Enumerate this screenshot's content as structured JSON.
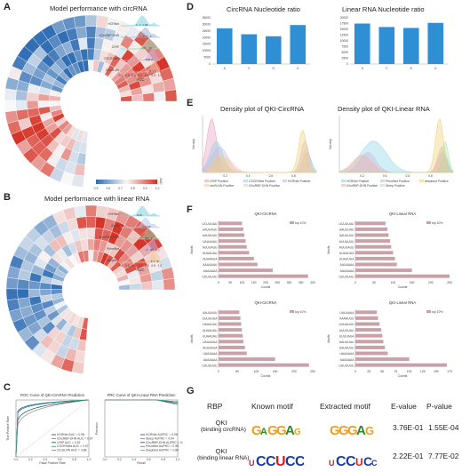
{
  "panels": {
    "A": {
      "label": "A",
      "title": "Model performance with circRNA",
      "models": [
        "HCRNet",
        "iCircRBP-DHN",
        "CRIP",
        "CSCRSites",
        "CircSLNN"
      ],
      "xlabel": "AUC",
      "xticks": [
        "0.4",
        "0.5",
        "0.6",
        "0.7",
        "0.8",
        "0.9",
        "1.0"
      ]
    },
    "B": {
      "label": "B",
      "title": "Model performance with linear RNA",
      "models": [
        "HCRNet",
        "iDeep",
        "iCircRBP-DHN",
        "PrismNet",
        "deepbind"
      ],
      "xlabel": "AUC",
      "xticks": [
        "0.4",
        "0.5",
        "0.6",
        "0.7",
        "0.8",
        "0.9",
        "1.0"
      ],
      "colorbar": {
        "label": "AUC",
        "ticks": [
          "0.5",
          "0.6",
          "0.7",
          "0.8",
          "0.9",
          "1.0"
        ]
      }
    },
    "C": {
      "label": "C",
      "roc_title": "ROC Curve of QKI-CircRNA Prediction",
      "roc_xlabel": "False Positive Rate",
      "roc_ylabel": "True Positive Rate",
      "roc_legend": [
        "HCRNet AUC = 0.98",
        "iCircRBP-DHN AUC = 0.97",
        "CRIP AUC = 0.92",
        "CSCRSites AUC = 0.97",
        "CircSLNN AUC = 0.88"
      ],
      "prc_title": "PRC Curve of QKI-Linear RNA Prediction",
      "prc_xlabel": "Recall",
      "prc_ylabel": "Precision",
      "prc_legend": [
        "HCRNet AUPRC = 0.96",
        "iDeep AUPRC = 0.94",
        "iCircRBP-DHN AUPRC = 0.92",
        "PrismNet AUPRC = 0.95",
        "deepbind AUPRC = 0.89"
      ]
    },
    "D": {
      "label": "D",
      "circ_title": "CircRNA Nucleotide ratio",
      "lin_title": "Linear RNA Nucleotide ratio"
    },
    "E": {
      "label": "E",
      "circ_title": "Density plot of QKI-CircRNA",
      "lin_title": "Density plot of QKI-Linear RNA",
      "ylabel": "Density",
      "circ_legend": [
        "CRIP Positive",
        "CSCRSites Positive",
        "HCRNet Positive",
        "circSLNN Positive",
        "iCircRBP-DHN Positive"
      ],
      "lin_legend": [
        "HCRNet Positive",
        "PrismNet Positive",
        "deepbind Positive",
        "iCircRBP-DHN Positive",
        "iDeep Positive"
      ]
    },
    "F": {
      "label": "F",
      "titles": [
        "QKI-CircRNA",
        "QKI-Linear RNA",
        "QKI-CircRNA",
        "QKI-Linear RNA"
      ],
      "legend": "top 10%",
      "xlabel": "Counts",
      "ylabel": "Motifs"
    },
    "G": {
      "label": "G",
      "headers": {
        "rbp": "RBP",
        "known": "Known motif",
        "extracted": "Extracted motif",
        "evalue": "E-value",
        "pvalue": "P-value"
      },
      "rows": [
        {
          "rbp": "QKI",
          "rbp_sub": "(binding circRNA)",
          "evalue": "3.76E-01",
          "pvalue": "1.55E-04"
        },
        {
          "rbp": "QKI",
          "rbp_sub": "(binding linear RNA)",
          "evalue": "2.22E-01",
          "pvalue": "7.77E-02"
        }
      ]
    }
  },
  "chart_data": [
    {
      "type": "bar",
      "title": "CircRNA Nucleotide ratio",
      "categories": [
        "A",
        "C",
        "G",
        "U"
      ],
      "values": [
        27000,
        22500,
        21000,
        29500
      ],
      "ylim": [
        0,
        35000
      ],
      "yticks": [
        "0",
        "5000",
        "10000",
        "15000",
        "20000",
        "25000",
        "30000",
        "35000"
      ],
      "color": "#2e8fd4"
    },
    {
      "type": "bar",
      "title": "Linear RNA Nucleotide ratio",
      "categories": [
        "A",
        "C",
        "G",
        "U"
      ],
      "values": [
        17500,
        16000,
        15600,
        17800
      ],
      "ylim": [
        0,
        20000
      ],
      "yticks": [
        "0",
        "2500",
        "5000",
        "7500",
        "10000",
        "12500",
        "15000",
        "17500",
        "20000"
      ],
      "color": "#2e8fd4"
    },
    {
      "type": "bar",
      "title": "QKI-CircRNA",
      "orientation": "horizontal",
      "series_name": "top 10%",
      "categories": [
        "UCUUUAU",
        "UAUUAUU",
        "UAUAUUU",
        "UAUAAAU",
        "AUUUAUU",
        "AUAAUAU",
        "AUAAAUA",
        "AAUAAAU",
        "AAAAAAA",
        "UUUUUUU"
      ],
      "values": [
        100,
        105,
        110,
        115,
        120,
        130,
        150,
        165,
        230,
        380
      ],
      "xlim": [
        0,
        400
      ],
      "xticks": [
        "0",
        "50",
        "100",
        "150",
        "200",
        "250",
        "300",
        "350",
        "400"
      ],
      "color": "#c9a1a8"
    },
    {
      "type": "bar",
      "title": "QKI-Linear RNA",
      "orientation": "horizontal",
      "series_name": "top 10%",
      "categories": [
        "UCUUUAU",
        "UAUUUAU",
        "UAUAUUU",
        "AUUAUUU",
        "AUUUAUU",
        "AUAUUUA",
        "UUAUUUA",
        "AAUAAAA",
        "AAAAAAA",
        "UUUUUUU"
      ],
      "values": [
        80,
        85,
        88,
        92,
        95,
        100,
        105,
        110,
        150,
        250
      ],
      "xlim": [
        0,
        250
      ],
      "xticks": [
        "0",
        "50",
        "100",
        "150",
        "200",
        "250"
      ],
      "color": "#c9a1a8"
    },
    {
      "type": "bar",
      "title": "QKI-CircRNA",
      "orientation": "horizontal",
      "series_name": "top 10%",
      "categories": [
        "UAUUAUU",
        "UUUUUUA",
        "UAAAUAU",
        "AUAAUAU",
        "UUAAUAU",
        "UAUAAUA",
        "AUUAAUA",
        "UAAAAAA",
        "AAAAAAA",
        "UUUUUUU"
      ],
      "values": [
        55,
        58,
        60,
        62,
        64,
        66,
        70,
        75,
        150,
        240
      ],
      "xlim": [
        0,
        250
      ],
      "xticks": [
        "0",
        "50",
        "100",
        "150",
        "200",
        "250"
      ],
      "color": "#c9a1a8"
    },
    {
      "type": "bar",
      "title": "QKI-Linear RNA",
      "orientation": "horizontal",
      "series_name": "top 10%",
      "categories": [
        "UAUAAAA",
        "AAAAUUU",
        "UUUAUUU",
        "AUUUUAU",
        "UUUUAUA",
        "AAUUUAU",
        "UAUAUUU",
        "UAAAAAA",
        "AAAAAAA",
        "UUUUUUU"
      ],
      "values": [
        40,
        42,
        45,
        48,
        50,
        52,
        55,
        60,
        100,
        170
      ],
      "xlim": [
        0,
        175
      ],
      "xticks": [
        "0",
        "25",
        "50",
        "75",
        "100",
        "125",
        "150",
        "175"
      ],
      "color": "#c9a1a8"
    }
  ]
}
